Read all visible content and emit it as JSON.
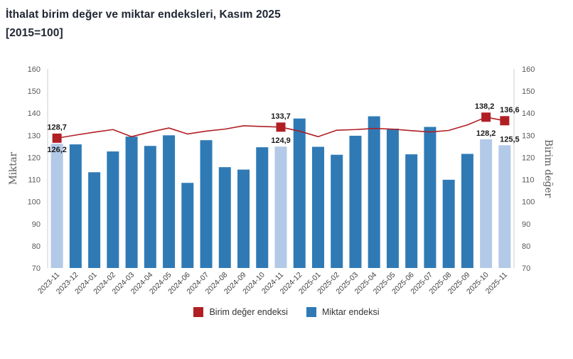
{
  "title": {
    "line1": "İthalat birim değer ve miktar endeksleri, Kasım 2025",
    "line2": "[2015=100]"
  },
  "axis_titles": {
    "left": "Miktar",
    "right": "Birim değer"
  },
  "legend": {
    "items": [
      {
        "label": "Birim değer endeksi",
        "color": "#b01f24"
      },
      {
        "label": "Miktar endeksi",
        "color": "#2f7ab5"
      }
    ]
  },
  "colors": {
    "bar": "#2f7ab5",
    "bar_highlight": "#b3c9e8",
    "line": "#b01f24",
    "axis_line": "#d9d9d9",
    "tick_text": "#595959",
    "xlabel_text": "#404040",
    "data_label": "#1a1a1a",
    "title_text": "#202733"
  },
  "chart_data": {
    "type": "combo: bar + line",
    "title": "İthalat birim değer ve miktar endeksleri, Kasım 2025 [2015=100]",
    "ylabel_left": "Miktar",
    "ylabel_right": "Birim değer",
    "ylim": [
      70,
      160
    ],
    "y_ticks": [
      70,
      80,
      90,
      100,
      110,
      120,
      130,
      140,
      150,
      160
    ],
    "grid": false,
    "legend_position": "bottom",
    "categories": [
      "2023-11",
      "2023-12",
      "2024-01",
      "2024-02",
      "2024-03",
      "2024-04",
      "2024-05",
      "2024-06",
      "2024-07",
      "2024-08",
      "2024-09",
      "2024-10",
      "2024-11",
      "2024-12",
      "2025-01",
      "2025-02",
      "2025-03",
      "2025-04",
      "2025-05",
      "2025-06",
      "2025-07",
      "2025-08",
      "2025-09",
      "2025-10",
      "2025-11"
    ],
    "series": [
      {
        "name": "Birim değer endeksi",
        "type": "line",
        "axis": "right",
        "color": "#b01f24",
        "marker": "square on labeled points only",
        "values": [
          128.7,
          130.1,
          131.4,
          132.6,
          129.4,
          131.5,
          133.3,
          130.6,
          131.9,
          132.8,
          134.3,
          134.0,
          133.7,
          131.9,
          129.4,
          132.3,
          132.6,
          133.1,
          132.8,
          132.1,
          131.5,
          132.2,
          134.7,
          138.2,
          136.6
        ]
      },
      {
        "name": "Miktar endeksi",
        "type": "bar",
        "axis": "left",
        "color": "#2f7ab5",
        "highlight_color": "#b3c9e8",
        "highlighted_categories": [
          "2023-11",
          "2024-11",
          "2025-10",
          "2025-11"
        ],
        "values": [
          126.2,
          125.9,
          113.3,
          122.7,
          129.4,
          125.2,
          130.0,
          108.5,
          127.8,
          115.6,
          114.5,
          124.6,
          124.9,
          137.6,
          124.8,
          121.2,
          129.8,
          138.6,
          133.0,
          121.4,
          133.8,
          109.9,
          121.6,
          128.2,
          125.5
        ]
      }
    ],
    "labeled_categories": [
      "2023-11",
      "2024-11",
      "2025-10",
      "2025-11"
    ],
    "value_labels": [
      {
        "category": "2023-11",
        "line": "128,7",
        "bar": "126,2"
      },
      {
        "category": "2024-11",
        "line": "133,7",
        "bar": "124,9"
      },
      {
        "category": "2025-10",
        "line": "138,2",
        "bar": "128,2"
      },
      {
        "category": "2025-11",
        "line": "136,6",
        "bar": "125,5"
      }
    ],
    "value_label_format": "decimal comma, 1 fraction digit",
    "label_dx": {
      "line": {
        "2025-10": -2,
        "2025-11": 7
      },
      "bar": {
        "2025-11": 7
      }
    }
  }
}
